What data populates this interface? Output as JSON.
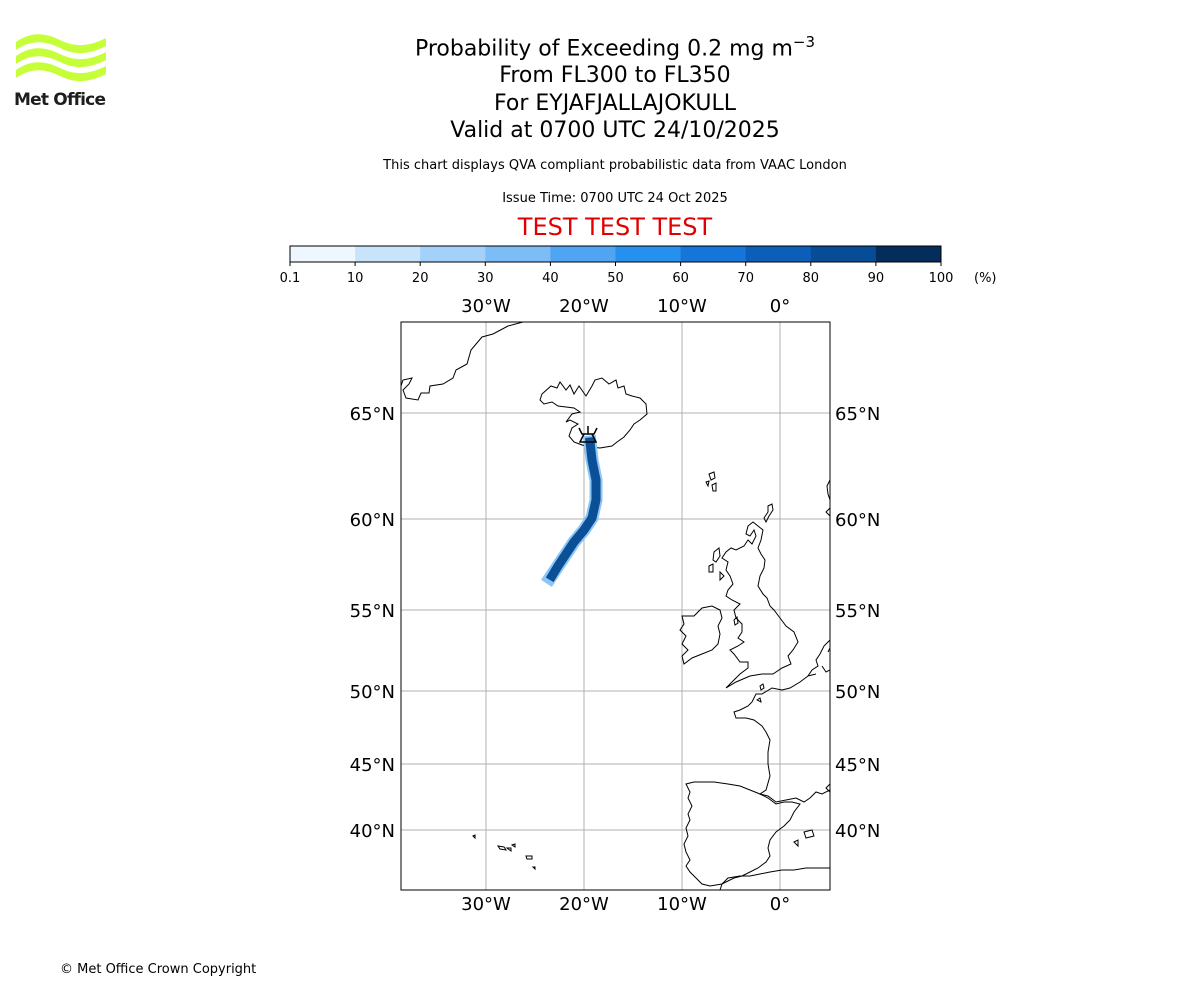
{
  "logo": {
    "name": "Met Office",
    "color": "#c6ff3a"
  },
  "header": {
    "title_line1": "Probability of Exceeding 0.2 mg m",
    "title_superscript": "−3",
    "title_line2": "From FL300 to FL350",
    "title_line3": "For EYJAFJALLAJOKULL",
    "title_line4": "Valid at 0700 UTC 24/10/2025",
    "description": "This chart displays QVA compliant probabilistic data from VAAC London",
    "issue_time": "Issue Time: 0700 UTC 24 Oct 2025",
    "test_banner": "TEST TEST TEST",
    "test_banner_color": "#e00000"
  },
  "legend": {
    "unit": "(%)",
    "tick_labels": [
      "0.1",
      "10",
      "20",
      "30",
      "40",
      "50",
      "60",
      "70",
      "80",
      "90",
      "100"
    ],
    "colors": [
      "#eef6ff",
      "#c9e3fb",
      "#a4d1f9",
      "#7cbdf6",
      "#4fa5f2",
      "#2690ee",
      "#1476d8",
      "#0b5fb8",
      "#064c96",
      "#042d5c"
    ]
  },
  "map": {
    "lon_labels": [
      "30°W",
      "20°W",
      "10°W",
      "0°"
    ],
    "lat_labels": [
      "65°N",
      "60°N",
      "55°N",
      "50°N",
      "45°N",
      "40°N"
    ],
    "volcano_name": "EYJAFJALLAJOKULL",
    "volcano_icon": "volcano-icon",
    "plume_color": "#0b4f96",
    "plume_edge_color": "#8cc6f5",
    "gridline_color": "#b0b0b0",
    "coastline_color": "#000000"
  },
  "footer": {
    "copyright": "© Met Office Crown Copyright"
  }
}
